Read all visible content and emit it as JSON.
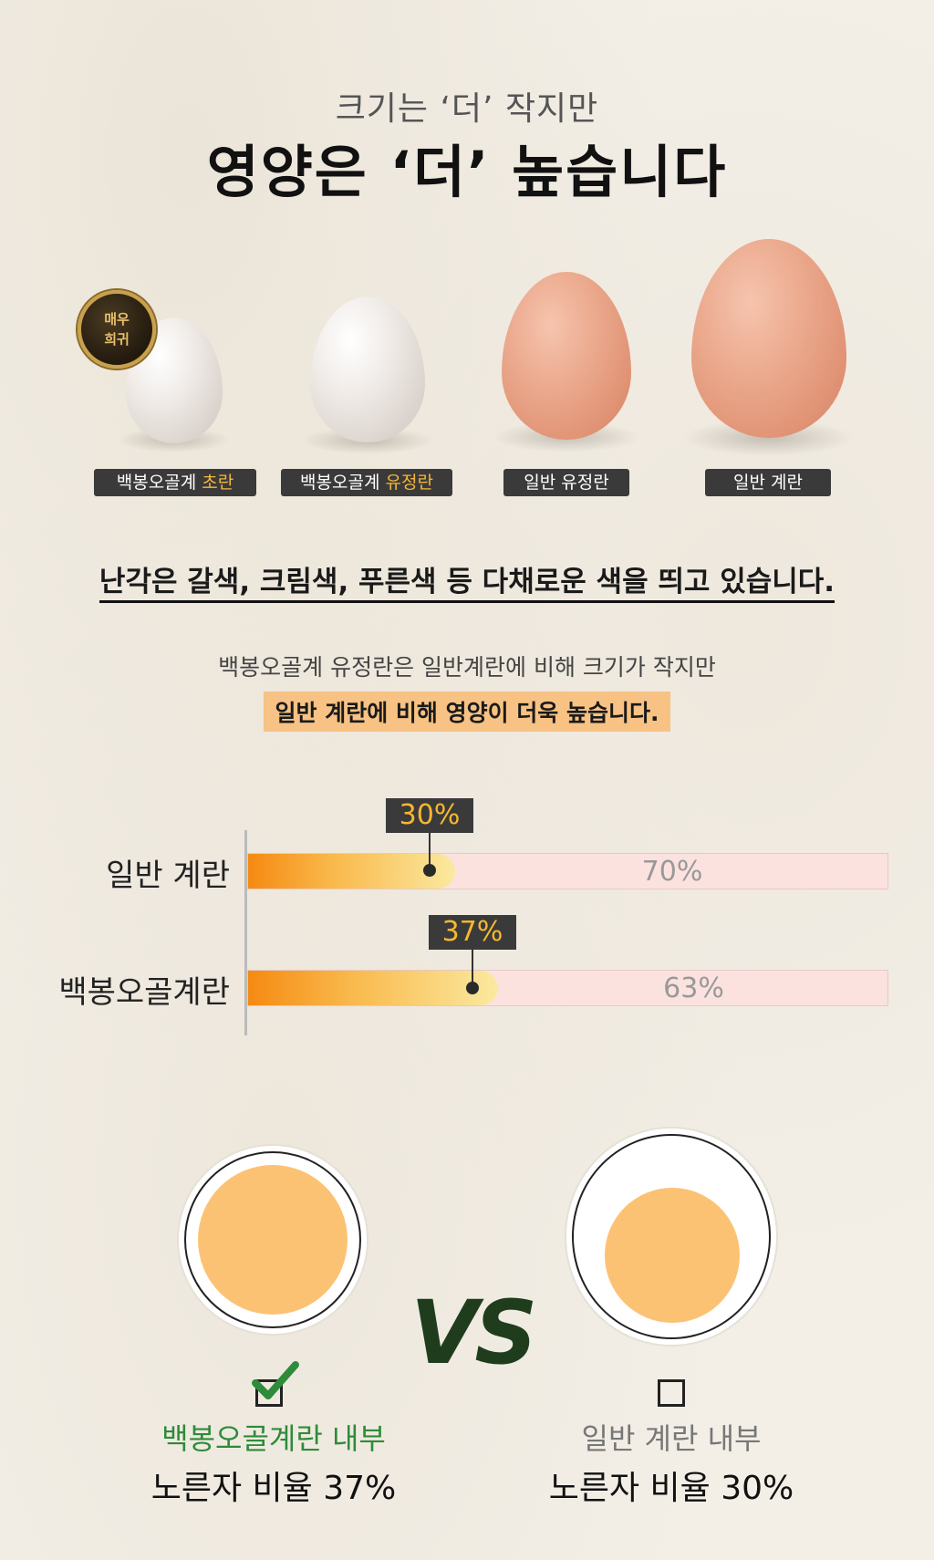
{
  "header": {
    "subtitle": "크기는 ‘더’ 작지만",
    "title": "영양은 ‘더’ 높습니다"
  },
  "badge": {
    "line1": "매우",
    "line2": "희귀"
  },
  "eggs": [
    {
      "label_prefix": "백봉오골계 ",
      "label_highlight": "초란"
    },
    {
      "label_prefix": "백봉오골계 ",
      "label_highlight": "유정란"
    },
    {
      "label_prefix": "일반 유정란",
      "label_highlight": ""
    },
    {
      "label_prefix": "일반 계란",
      "label_highlight": ""
    }
  ],
  "shell_note": "난각은 갈색, 크림색, 푸른색 등 다채로운 색을 띄고 있습니다.",
  "comparison": {
    "line1": "백봉오골계 유정란은 일반계란에 비해 크기가 작지만",
    "line2": "일반 계란에 비해 영양이 더욱 높습니다."
  },
  "chart_data": {
    "type": "bar",
    "categories": [
      "일반 계란",
      "백봉오골계란"
    ],
    "series": [
      {
        "values": [
          30,
          37
        ]
      },
      {
        "values": [
          70,
          63
        ]
      }
    ],
    "labels": {
      "yolk": [
        "30%",
        "37%"
      ],
      "rest": [
        "70%",
        "63%"
      ]
    },
    "colors": {
      "fill": "#f58a12",
      "track": "#fbe2df",
      "callout": "#3a3a3a",
      "callout_text": "#f7b731"
    }
  },
  "yolk_compare": {
    "vs": "VS",
    "left": {
      "name": "백봉오골계란 내부",
      "ratio": "노른자 비율 37%",
      "checked": true,
      "name_color": "#2e8b3a"
    },
    "right": {
      "name": "일반 계란 내부",
      "ratio": "노른자 비율 30%",
      "checked": false,
      "name_color": "#777777"
    }
  }
}
